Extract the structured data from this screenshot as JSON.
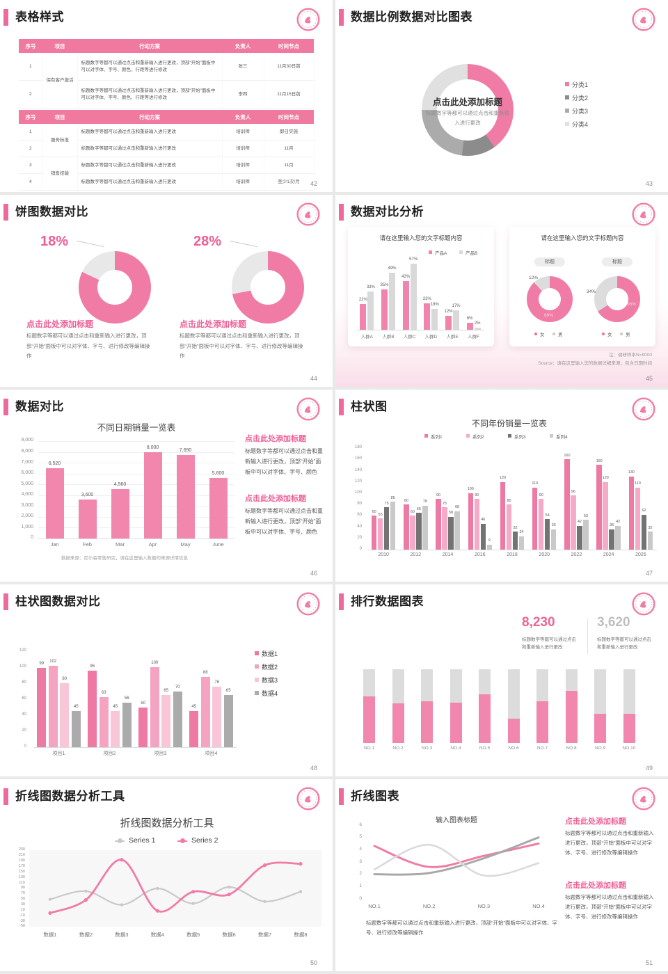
{
  "colors": {
    "pink": "#f07ca6",
    "pinkText": "#ee5f96",
    "pinkMid": "#f6a9c6",
    "pinkLight": "#f9c8da",
    "grayDark": "#8c8c8c",
    "grayMid": "#ababab",
    "grayLight": "#e0e0e0",
    "statGray": "#bfbfbf"
  },
  "slides": {
    "s42": {
      "title": "表格样式",
      "page": "42",
      "tables": [
        {
          "headers": [
            "序号",
            "项目",
            "行动方案",
            "负责人",
            "时间节点"
          ],
          "groups": [
            {
              "label": "保有客户激活",
              "rows": [
                {
                  "no": "1",
                  "action": "标题数字等都可以通过点击和重新输入进行更改，顶部“开始”面板中可以对字体、字号、颜色、行距等进行修改",
                  "owner": "张三",
                  "time": "11月30日前"
                },
                {
                  "no": "2",
                  "action": "标题数字等都可以通过点击和重新输入进行更改，顶部“开始”面板中可以对字体、字号、颜色、行距等进行修改",
                  "owner": "李四",
                  "time": "11月15日前"
                }
              ]
            }
          ]
        },
        {
          "headers": [
            "序号",
            "项目",
            "行动方案",
            "负责人",
            "时间节点"
          ],
          "groups": [
            {
              "label": "服务标准",
              "rows": [
                {
                  "no": "1",
                  "action": "标题数字等都可以通过点击和重新输入进行更改",
                  "owner": "培训师",
                  "time": "即日实施"
                },
                {
                  "no": "2",
                  "action": "标题数字等都可以通过点击和重新输入进行更改",
                  "owner": "培训师",
                  "time": "11月"
                }
              ]
            },
            {
              "label": "销售技能",
              "rows": [
                {
                  "no": "3",
                  "action": "标题数字等都可以通过点击和重新输入进行更改",
                  "owner": "培训师",
                  "time": "11月"
                },
                {
                  "no": "4",
                  "action": "标题数字等都可以通过点击和重新输入进行更改",
                  "owner": "培训师",
                  "time": "至少1次/月"
                }
              ]
            }
          ]
        }
      ]
    },
    "s43": {
      "title": "数据比例数据对比图表",
      "page": "43",
      "chart_data": {
        "type": "pie",
        "labels": [
          "分类1",
          "分类2",
          "分类3",
          "分类4"
        ],
        "values": [
          40,
          12,
          23,
          25
        ],
        "colors": [
          "#f07ca6",
          "#8c8c8c",
          "#ababab",
          "#e0e0e0"
        ]
      },
      "center_title": "点击此处添加标题",
      "center_sub": "标题数字等都可以通过点击和重新输入进行更改"
    },
    "s44": {
      "title": "饼图数据对比",
      "page": "44",
      "block_title": "点击此处添加标题",
      "block_text": "标题数字等都可以通过点击和重新输入进行更改，顶部“开始”面板中可以对字体、字号、进行修改等编辑操作",
      "items": [
        {
          "pct": "18%",
          "gray": 18
        },
        {
          "pct": "28%",
          "gray": 28
        }
      ]
    },
    "s45": {
      "title": "数据对比分析",
      "page": "45",
      "left": {
        "chart_data": {
          "type": "bar",
          "title": "请在这里输入您的文字标题内容",
          "categories": [
            "人群A",
            "人群B",
            "人群C",
            "人群D",
            "人群E",
            "人群F"
          ],
          "series": [
            {
              "name": "产品A",
              "color": "#f084ad",
              "values": [
                22,
                35,
                42,
                23,
                12,
                6
              ],
              "labels": [
                "22%",
                "35%",
                "42%",
                "23%",
                "12%",
                "6%"
              ]
            },
            {
              "name": "产品B",
              "color": "#d9d9d9",
              "values": [
                33,
                49,
                57,
                18,
                17,
                2
              ],
              "labels": [
                "33%",
                "49%",
                "57%",
                "18%",
                "17%",
                "2%"
              ]
            }
          ],
          "ylim": [
            0,
            60
          ]
        }
      },
      "right": {
        "title": "请在这里输入您的文字标题内容",
        "pill": "标题",
        "donuts": [
          {
            "pink": 88,
            "gray": 12,
            "gray_label": "12%",
            "pink_label": "88%"
          },
          {
            "pink": 66,
            "gray": 34,
            "gray_label": "34%",
            "pink_label": "66%"
          }
        ],
        "legend": [
          {
            "label": "女",
            "color": "#ee6a9c"
          },
          {
            "label": "男",
            "color": "#c9c9c9"
          }
        ]
      },
      "note1": "注：调研样本N=9000",
      "note2": "Source：请在这里输入您的数据详细来源，包含日期时间"
    },
    "s46": {
      "title": "数据对比",
      "page": "46",
      "chart_data": {
        "type": "bar",
        "title": "不同日期销量一览表",
        "categories": [
          "Jan",
          "Feb",
          "Mar",
          "Apr",
          "May",
          "June"
        ],
        "values": [
          6520,
          3600,
          4560,
          8000,
          7690,
          5600
        ],
        "labels": [
          "6,520",
          "3,600",
          "4,560",
          "8,000",
          "7,690",
          "5,600"
        ],
        "yticks": [
          "9,000",
          "8,000",
          "7,000",
          "6,000",
          "5,000",
          "4,000",
          "3,000",
          "2,000",
          "1,000",
          "0"
        ],
        "ylim": [
          0,
          9000
        ]
      },
      "source": "数据来源：尼尔森零售研究，请在这里输入数据的来源详情信息",
      "blocks": [
        {
          "title": "点击此处添加标题",
          "text": "标题数字等都可以通过点击和重新输入进行更改，顶部“开始”面板中可以对字体、字号、颜色"
        },
        {
          "title": "点击此处添加标题",
          "text": "标题数字等都可以通过点击和重新输入进行更改，顶部“开始”面板中可以对字体、字号、颜色"
        }
      ]
    },
    "s47": {
      "title": "柱状图",
      "page": "47",
      "chart_data": {
        "type": "bar",
        "title": "不同年份销量一览表",
        "categories": [
          "2010",
          "2012",
          "2014",
          "2016",
          "2018",
          "2020",
          "2022",
          "2024",
          "2026"
        ],
        "series": [
          {
            "name": "系列1",
            "color": "#ee7aa4",
            "values": [
              60,
              80,
              90,
              100,
              120,
              110,
              160,
              150,
              130
            ]
          },
          {
            "name": "系列2",
            "color": "#f6aac7",
            "values": [
              55,
              60,
              75,
              90,
              80,
              90,
              96,
              120,
              110
            ]
          },
          {
            "name": "系列3",
            "color": "#737373",
            "values": [
              75,
              65,
              58,
              46,
              32,
              54,
              42,
              36,
              62
            ]
          },
          {
            "name": "系列4",
            "color": "#c9c9c9",
            "values": [
              85,
              78,
              68,
              9,
              24,
              36,
              53,
              42,
              32
            ]
          }
        ],
        "yticks": [
          "180",
          "160",
          "140",
          "120",
          "100",
          "80",
          "60",
          "40",
          "20",
          "0"
        ],
        "ylim": [
          0,
          180
        ]
      }
    },
    "s48": {
      "title": "柱状图数据对比",
      "page": "48",
      "chart_data": {
        "type": "bar",
        "categories": [
          "项目1",
          "项目2",
          "项目3",
          "项目4"
        ],
        "series": [
          {
            "name": "数据1",
            "color": "#ee7aa4",
            "values": [
              99,
              96,
              50,
              45
            ]
          },
          {
            "name": "数据2",
            "color": "#f4a3c0",
            "values": [
              102,
              63,
              100,
              88
            ]
          },
          {
            "name": "数据3",
            "color": "#f9c6d8",
            "values": [
              80,
              45,
              65,
              76
            ]
          },
          {
            "name": "数据4",
            "color": "#ababab",
            "values": [
              45,
              56,
              70,
              65
            ]
          }
        ],
        "yticks": [
          "120",
          "100",
          "80",
          "60",
          "40",
          "20",
          "0"
        ],
        "ylim": [
          0,
          120
        ]
      }
    },
    "s49": {
      "title": "排行数据图表",
      "page": "49",
      "stats": [
        {
          "value": "8,230",
          "text": "标题数字等都可以通过点击和重新输入进行更改"
        },
        {
          "value": "3,620",
          "text": "标题数字等都可以通过点击和重新输入进行更改"
        }
      ],
      "chart_data": {
        "type": "bar",
        "stacked": true,
        "categories": [
          "NO.1",
          "NO.2",
          "NO.3",
          "NO.4",
          "NO.5",
          "NO.6",
          "NO.7",
          "NO.8",
          "NO.9",
          "NO.10"
        ],
        "pink_pct": [
          63,
          54,
          57,
          55,
          66,
          33,
          57,
          71,
          40,
          40
        ]
      }
    },
    "s50": {
      "title": "折线图数据分析工具",
      "page": "50",
      "chart_data": {
        "type": "line",
        "title": "折线图数据分析工具",
        "categories": [
          "数据1",
          "数据2",
          "数据3",
          "数据4",
          "数据5",
          "数据6",
          "数据7",
          "数据8"
        ],
        "series": [
          {
            "name": "Series 1",
            "color": "#c9c9c9",
            "values": [
              50,
              80,
              30,
              90,
              35,
              95,
              42,
              78
            ]
          },
          {
            "name": "Series 2",
            "color": "#f07ba7",
            "values": [
              0,
              48,
              195,
              8,
              78,
              68,
              175,
              180
            ]
          }
        ],
        "yticks": [
          "230",
          "210",
          "190",
          "170",
          "150",
          "130",
          "110",
          "90",
          "70",
          "50",
          "30",
          "10",
          "-10",
          "-30",
          "-50"
        ],
        "ylim": [
          -50,
          230
        ]
      }
    },
    "s51": {
      "title": "折线图表",
      "page": "51",
      "chart_data": {
        "type": "line",
        "title": "输入图表标题",
        "categories": [
          "NO.1",
          "NO.2",
          "NO.3",
          "NO.4"
        ],
        "series": [
          {
            "name": "pink",
            "color": "#f07ca6",
            "values": [
              4.3,
              2.6,
              3.5,
              4.5
            ]
          },
          {
            "name": "gray-dark",
            "color": "#a8a8a8",
            "values": [
              2,
              2.1,
              3.3,
              5
            ]
          },
          {
            "name": "gray-light",
            "color": "#d9d9d9",
            "values": [
              2.4,
              4.4,
              1.9,
              2.9
            ]
          }
        ],
        "yticks": [
          "6",
          "5",
          "4",
          "3",
          "2",
          "1",
          "0"
        ],
        "ylim": [
          0,
          6
        ]
      },
      "caption": "标题数字等都可以通过点击和重新输入进行更改，顶部“开始”面板中可以对字体、字号、进行修改等编辑操作",
      "blocks": [
        {
          "title": "点击此处添加标题",
          "text": "标题数字等都可以通过点击和重新输入进行更改，顶部“开始”面板中可以对字体、字号、进行修改等编辑操作"
        },
        {
          "title": "点击此处添加标题",
          "text": "标题数字等都可以通过点击和重新输入进行更改，顶部“开始”面板中可以对字体、字号、进行修改等编辑操作"
        }
      ]
    }
  }
}
